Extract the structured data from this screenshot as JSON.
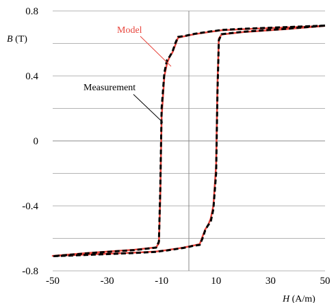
{
  "chart_data": {
    "type": "line",
    "xlabel": {
      "symbol": "H",
      "unit": "(A/m)"
    },
    "ylabel": {
      "symbol": "B",
      "unit": "(T)"
    },
    "xlim": [
      -50,
      50
    ],
    "ylim": [
      -0.8,
      0.8
    ],
    "x_ticks": [
      "-50",
      "-30",
      "-10",
      "10",
      "30",
      "50"
    ],
    "y_ticks": [
      "0.8",
      "0.4",
      "0",
      "-0.4",
      "-0.8"
    ],
    "grid": "horizontal, every 0.2 T",
    "series": [
      {
        "name": "Measurement",
        "color": "#000000",
        "style": "dashed",
        "x": [
          50,
          35,
          20,
          12,
          10,
          9,
          8,
          6,
          4,
          2,
          1,
          0,
          -1,
          -2,
          -4,
          -5,
          -6,
          -7,
          -8,
          -9,
          -10,
          -10.5,
          -11,
          -12,
          -20,
          -35,
          -50,
          -35,
          -20,
          -12,
          -10,
          -9,
          -8,
          -6,
          -4,
          -2,
          -1,
          0,
          1,
          2,
          4,
          5,
          6,
          7,
          8,
          9,
          10,
          10.5,
          11,
          12,
          20,
          35,
          50
        ],
        "y": [
          0.71,
          0.7,
          0.69,
          0.683,
          0.678,
          0.676,
          0.674,
          0.669,
          0.664,
          0.659,
          0.655,
          0.652,
          0.648,
          0.645,
          0.64,
          0.6,
          0.55,
          0.52,
          0.5,
          0.42,
          0.2,
          -0.3,
          -0.62,
          -0.657,
          -0.672,
          -0.689,
          -0.71,
          -0.7,
          -0.69,
          -0.683,
          -0.678,
          -0.676,
          -0.674,
          -0.669,
          -0.664,
          -0.659,
          -0.655,
          -0.652,
          -0.648,
          -0.645,
          -0.64,
          -0.6,
          -0.55,
          -0.52,
          -0.5,
          -0.42,
          -0.2,
          0.3,
          0.62,
          0.657,
          0.672,
          0.689,
          0.71
        ]
      },
      {
        "name": "Model",
        "color": "#e8453c",
        "style": "solid",
        "x": [
          50,
          35,
          20,
          12,
          10,
          9,
          8,
          6,
          4,
          2,
          1,
          0,
          -1,
          -2,
          -4,
          -5,
          -6,
          -7,
          -8,
          -9,
          -10,
          -10.5,
          -11,
          -12,
          -20,
          -35,
          -50,
          -35,
          -20,
          -12,
          -10,
          -9,
          -8,
          -6,
          -4,
          -2,
          -1,
          0,
          1,
          2,
          4,
          5,
          6,
          7,
          8,
          9,
          10,
          10.5,
          11,
          12,
          20,
          35,
          50
        ],
        "y": [
          0.708,
          0.698,
          0.688,
          0.681,
          0.676,
          0.674,
          0.672,
          0.667,
          0.662,
          0.657,
          0.653,
          0.65,
          0.646,
          0.643,
          0.635,
          0.59,
          0.545,
          0.52,
          0.48,
          0.4,
          0.15,
          -0.35,
          -0.63,
          -0.655,
          -0.67,
          -0.687,
          -0.708,
          -0.698,
          -0.688,
          -0.681,
          -0.676,
          -0.674,
          -0.672,
          -0.667,
          -0.662,
          -0.657,
          -0.653,
          -0.65,
          -0.646,
          -0.643,
          -0.635,
          -0.59,
          -0.545,
          -0.52,
          -0.48,
          -0.4,
          -0.15,
          0.35,
          0.63,
          0.655,
          0.67,
          0.687,
          0.708
        ]
      }
    ]
  }
}
